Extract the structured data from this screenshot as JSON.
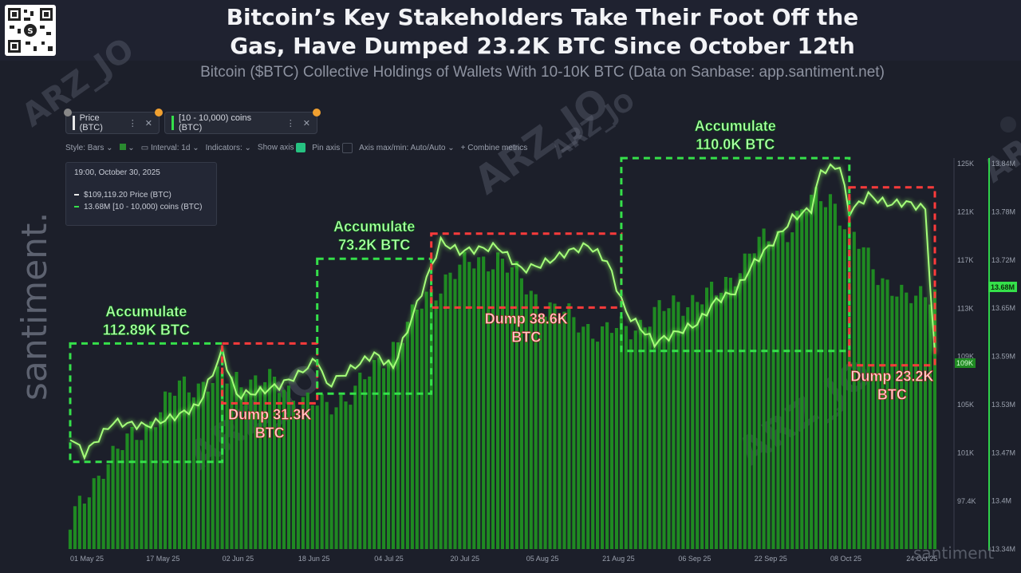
{
  "header": {
    "title_line1": "Bitcoin’s Key Stakeholders Take Their Foot Off the",
    "title_line2": "Gas, Have Dumped 23.2K BTC Since October 12th",
    "subtitle": "Bitcoin ($BTC) Collective Holdings of Wallets With 10-10K BTC (Data on Sanbase: app.santiment.net)"
  },
  "brand": {
    "side_logo": "santiment.",
    "bottom_logo": "santiment",
    "watermark": "ARZ_JO"
  },
  "metrics": [
    {
      "label": "Price (BTC)",
      "color": "#e8e8e8"
    },
    {
      "label": "[10 - 10,000) coins (BTC)",
      "color": "#35e04a"
    }
  ],
  "toolbar": {
    "style": "Style: Bars",
    "interval": "Interval: 1d",
    "indicators": "Indicators:",
    "show_axis": "Show axis",
    "pin_axis": "Pin axis",
    "axis_minmax": "Axis max/min: Auto/Auto",
    "combine": "Combine metrics"
  },
  "tooltip": {
    "date": "19:00, October 30, 2025",
    "price": "$109,119.20 Price (BTC)",
    "holdings": "13.68M [10 - 10,000) coins (BTC)"
  },
  "annotations": [
    {
      "text1": "Accumulate",
      "text2": "112.89K BTC",
      "kind": "accumulate"
    },
    {
      "text1": "Dump 31.3K",
      "text2": "BTC",
      "kind": "dump"
    },
    {
      "text1": "Accumulate",
      "text2": "73.2K BTC",
      "kind": "accumulate"
    },
    {
      "text1": "Dump 38.6K",
      "text2": "BTC",
      "kind": "dump"
    },
    {
      "text1": "Accumulate",
      "text2": "110.0K BTC",
      "kind": "accumulate"
    },
    {
      "text1": "Dump 23.2K",
      "text2": "BTC",
      "kind": "dump"
    }
  ],
  "colors": {
    "accumulate": "#35e04a",
    "dump": "#ff3b3b",
    "bars": "#1f8a22",
    "price_line": "#a6ff7a"
  },
  "chart_data": {
    "type": "bar",
    "title": "Bitcoin’s Key Stakeholders Take Their Foot Off the Gas, Have Dumped 23.2K BTC Since October 12th",
    "x_ticks": [
      "01 May 25",
      "17 May 25",
      "02 Jun 25",
      "18 Jun 25",
      "04 Jul 25",
      "20 Jul 25",
      "05 Aug 25",
      "21 Aug 25",
      "06 Sep 25",
      "22 Sep 25",
      "08 Oct 25",
      "24 Oct 25"
    ],
    "price_axis_ticks": [
      "125K",
      "121K",
      "117K",
      "113K",
      "109K",
      "105K",
      "101K",
      "97.4K"
    ],
    "holdings_axis_ticks": [
      "13.84M",
      "13.78M",
      "13.72M",
      "13.65M",
      "13.59M",
      "13.53M",
      "13.47M",
      "13.4M",
      "13.34M"
    ],
    "price_ylim": [
      93400,
      125000
    ],
    "holdings_ylim": [
      13.34,
      13.84
    ],
    "current_price_label": "109K",
    "current_holdings_label": "13.68M",
    "series": [
      {
        "name": "Price (BTC)",
        "chart_type": "line",
        "anchors": [
          [
            "01 May 25",
            102600
          ],
          [
            "04 May 25",
            101200
          ],
          [
            "10 May 25",
            103800
          ],
          [
            "17 May 25",
            103500
          ],
          [
            "24 May 25",
            104400
          ],
          [
            "28 May 25",
            105200
          ],
          [
            "02 Jun 25",
            109600
          ],
          [
            "05 Jun 25",
            106000
          ],
          [
            "10 Jun 25",
            106300
          ],
          [
            "14 Jun 25",
            106800
          ],
          [
            "18 Jun 25",
            107700
          ],
          [
            "22 Jun 25",
            109000
          ],
          [
            "24 Jun 25",
            106800
          ],
          [
            "30 Jun 25",
            108400
          ],
          [
            "04 Jul 25",
            109400
          ],
          [
            "08 Jul 25",
            108300
          ],
          [
            "14 Jul 25",
            114500
          ],
          [
            "18 Jul 25",
            118600
          ],
          [
            "22 Jul 25",
            117800
          ],
          [
            "30 Jul 25",
            118200
          ],
          [
            "04 Aug 25",
            116300
          ],
          [
            "08 Aug 25",
            116700
          ],
          [
            "14 Aug 25",
            117800
          ],
          [
            "18 Aug 25",
            118300
          ],
          [
            "22 Aug 25",
            117000
          ],
          [
            "26 Aug 25",
            112800
          ],
          [
            "01 Sep 25",
            110300
          ],
          [
            "06 Sep 25",
            111200
          ],
          [
            "10 Sep 25",
            111900
          ],
          [
            "14 Sep 25",
            113800
          ],
          [
            "18 Sep 25",
            114500
          ],
          [
            "22 Sep 25",
            116900
          ],
          [
            "26 Sep 25",
            118600
          ],
          [
            "30 Sep 25",
            120500
          ],
          [
            "04 Oct 25",
            121300
          ],
          [
            "06 Oct 25",
            124400
          ],
          [
            "10 Oct 25",
            124800
          ],
          [
            "12 Oct 25",
            121000
          ],
          [
            "16 Oct 25",
            122400
          ],
          [
            "20 Oct 25",
            121700
          ],
          [
            "24 Oct 25",
            121800
          ],
          [
            "28 Oct 25",
            121300
          ],
          [
            "30 Oct 25",
            109119
          ]
        ]
      },
      {
        "name": "[10 - 10,000) coins (BTC)",
        "chart_type": "bar",
        "anchors": [
          [
            "01 May 25",
            13.37
          ],
          [
            "08 May 25",
            13.45
          ],
          [
            "17 May 25",
            13.5
          ],
          [
            "24 May 25",
            13.55
          ],
          [
            "02 Jun 25",
            13.56
          ],
          [
            "10 Jun 25",
            13.56
          ],
          [
            "18 Jun 25",
            13.54
          ],
          [
            "24 Jun 25",
            13.52
          ],
          [
            "04 Jul 25",
            13.57
          ],
          [
            "12 Jul 25",
            13.64
          ],
          [
            "20 Jul 25",
            13.7
          ],
          [
            "30 Jul 25",
            13.72
          ],
          [
            "08 Aug 25",
            13.66
          ],
          [
            "14 Aug 25",
            13.64
          ],
          [
            "21 Aug 25",
            13.62
          ],
          [
            "28 Aug 25",
            13.63
          ],
          [
            "06 Sep 25",
            13.66
          ],
          [
            "14 Sep 25",
            13.67
          ],
          [
            "22 Sep 25",
            13.73
          ],
          [
            "30 Sep 25",
            13.76
          ],
          [
            "04 Oct 25",
            13.79
          ],
          [
            "08 Oct 25",
            13.8
          ],
          [
            "12 Oct 25",
            13.75
          ],
          [
            "18 Oct 25",
            13.7
          ],
          [
            "24 Oct 25",
            13.66
          ],
          [
            "30 Oct 25",
            13.68
          ]
        ]
      }
    ],
    "annotations": [
      {
        "label": "Accumulate 112.89K BTC",
        "from": "01 May 25",
        "to": "02 Jun 25"
      },
      {
        "label": "Dump 31.3K BTC",
        "from": "02 Jun 25",
        "to": "22 Jun 25"
      },
      {
        "label": "Accumulate 73.2K BTC",
        "from": "22 Jun 25",
        "to": "16 Jul 25"
      },
      {
        "label": "Dump 38.6K BTC",
        "from": "16 Jul 25",
        "to": "25 Aug 25"
      },
      {
        "label": "Accumulate 110.0K BTC",
        "from": "25 Aug 25",
        "to": "12 Oct 25"
      },
      {
        "label": "Dump 23.2K BTC",
        "from": "12 Oct 25",
        "to": "30 Oct 25"
      }
    ]
  }
}
